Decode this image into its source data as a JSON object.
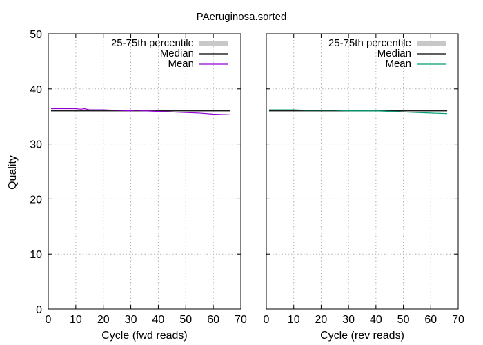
{
  "title": "PAeruginosa.sorted",
  "ylabel": "Quality",
  "chart_data": [
    {
      "type": "line",
      "xlabel": "Cycle (fwd reads)",
      "xlim": [
        0,
        70
      ],
      "ylim": [
        0,
        50
      ],
      "xticks": [
        0,
        10,
        20,
        30,
        40,
        50,
        60,
        70
      ],
      "yticks": [
        0,
        10,
        20,
        30,
        40,
        50
      ],
      "grid": true,
      "legend_position": "top-right",
      "series": [
        {
          "name": "25-75th percentile",
          "color": "#c8c8c8",
          "x": [
            1,
            66
          ],
          "low": [
            36,
            36
          ],
          "high": [
            36,
            36
          ]
        },
        {
          "name": "Median",
          "color": "#000000",
          "x": [
            1,
            66
          ],
          "values": [
            36,
            36
          ]
        },
        {
          "name": "Mean",
          "color": "#9400d3",
          "x": [
            1,
            5,
            10,
            12,
            13,
            15,
            20,
            25,
            30,
            32,
            35,
            40,
            45,
            50,
            55,
            60,
            66
          ],
          "values": [
            36.4,
            36.4,
            36.4,
            36.3,
            36.4,
            36.2,
            36.2,
            36.1,
            36.0,
            36.1,
            36.0,
            35.9,
            35.8,
            35.7,
            35.6,
            35.4,
            35.3
          ]
        }
      ]
    },
    {
      "type": "line",
      "xlabel": "Cycle (rev reads)",
      "xlim": [
        0,
        70
      ],
      "ylim": [
        0,
        50
      ],
      "xticks": [
        0,
        10,
        20,
        30,
        40,
        50,
        60,
        70
      ],
      "yticks": [
        0,
        10,
        20,
        30,
        40,
        50
      ],
      "grid": true,
      "legend_position": "top-right",
      "series": [
        {
          "name": "25-75th percentile",
          "color": "#c8c8c8",
          "x": [
            1,
            66
          ],
          "low": [
            36,
            36
          ],
          "high": [
            36,
            36
          ]
        },
        {
          "name": "Median",
          "color": "#000000",
          "x": [
            1,
            66
          ],
          "values": [
            36,
            36
          ]
        },
        {
          "name": "Mean",
          "color": "#009e73",
          "x": [
            1,
            5,
            10,
            15,
            20,
            25,
            30,
            35,
            40,
            45,
            50,
            55,
            60,
            66
          ],
          "values": [
            36.2,
            36.2,
            36.2,
            36.1,
            36.1,
            36.1,
            36.0,
            36.0,
            36.0,
            35.9,
            35.8,
            35.7,
            35.6,
            35.5
          ]
        }
      ]
    }
  ]
}
